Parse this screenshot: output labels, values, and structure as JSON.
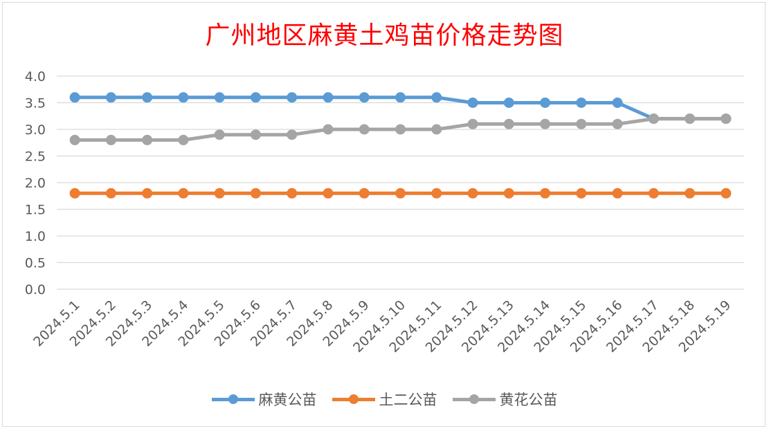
{
  "chart_data": {
    "type": "line",
    "title": "广州地区麻黄土鸡苗价格走势图",
    "categories": [
      "2024.5.1",
      "2024.5.2",
      "2024.5.3",
      "2024.5.4",
      "2024.5.5",
      "2024.5.6",
      "2024.5.7",
      "2024.5.8",
      "2024.5.9",
      "2024.5.10",
      "2024.5.11",
      "2024.5.12",
      "2024.5.13",
      "2024.5.14",
      "2024.5.15",
      "2024.5.16",
      "2024.5.17",
      "2024.5.18",
      "2024.5.19"
    ],
    "series": [
      {
        "name": "麻黄公苗",
        "color": "#5b9bd5",
        "values": [
          3.6,
          3.6,
          3.6,
          3.6,
          3.6,
          3.6,
          3.6,
          3.6,
          3.6,
          3.6,
          3.6,
          3.5,
          3.5,
          3.5,
          3.5,
          3.5,
          3.2,
          3.2,
          3.2
        ]
      },
      {
        "name": "土二公苗",
        "color": "#ed7d31",
        "values": [
          1.8,
          1.8,
          1.8,
          1.8,
          1.8,
          1.8,
          1.8,
          1.8,
          1.8,
          1.8,
          1.8,
          1.8,
          1.8,
          1.8,
          1.8,
          1.8,
          1.8,
          1.8,
          1.8
        ]
      },
      {
        "name": "黄花公苗",
        "color": "#a5a5a5",
        "values": [
          2.8,
          2.8,
          2.8,
          2.8,
          2.9,
          2.9,
          2.9,
          3.0,
          3.0,
          3.0,
          3.0,
          3.1,
          3.1,
          3.1,
          3.1,
          3.1,
          3.2,
          3.2,
          3.2
        ]
      }
    ],
    "yticks": [
      "0.0",
      "0.5",
      "1.0",
      "1.5",
      "2.0",
      "2.5",
      "3.0",
      "3.5",
      "4.0"
    ],
    "ylim": [
      0,
      4.0
    ],
    "grid": true,
    "legend_position": "bottom",
    "xlabel": "",
    "ylabel": ""
  }
}
